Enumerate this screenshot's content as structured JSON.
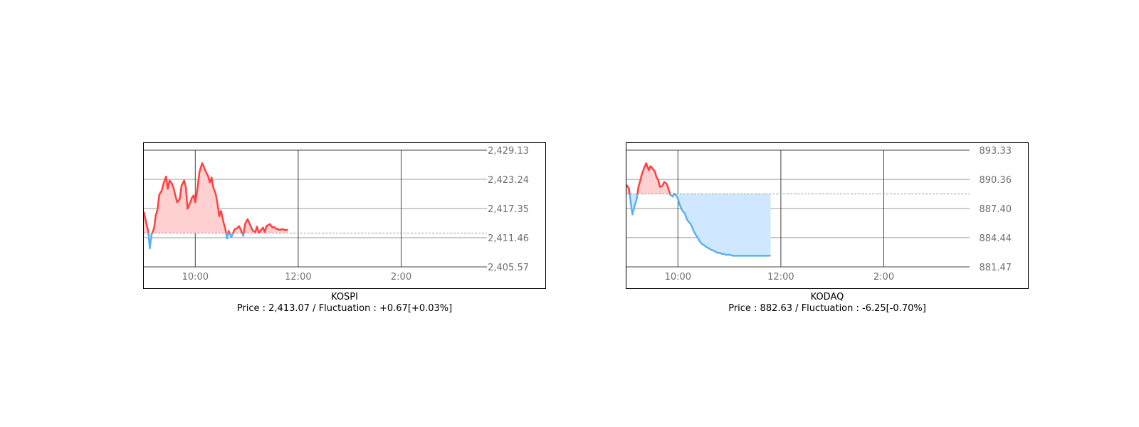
{
  "chart_data": [
    {
      "type": "area",
      "title": "KOSPI",
      "price_line": "Price : 2,413.07 / Fluctuation : +0.67[+0.03%]",
      "baseline": 2412.4,
      "ylim": [
        2405.57,
        2429.13
      ],
      "y_ticks": [
        "2,429.13",
        "2,423.24",
        "2,417.35",
        "2,411.46",
        "2,405.57"
      ],
      "y_tick_values": [
        2429.13,
        2423.24,
        2417.35,
        2411.46,
        2405.57
      ],
      "x_ticks": [
        "10:00",
        "12:00",
        "2:00"
      ],
      "x_tick_values": [
        600,
        720,
        840
      ],
      "xlim": [
        540,
        940
      ],
      "colors": {
        "up": "#ff4040",
        "down": "#5ab0f5",
        "up_fill": "#ffd0d0",
        "down_fill": "#d0e8ff",
        "baseline": "#999999",
        "grid": "#999999",
        "axis": "#444444"
      },
      "series": [
        {
          "name": "KOSPI",
          "x": [
            540,
            543,
            545,
            547,
            549,
            552,
            554,
            556,
            558,
            561,
            563,
            566,
            568,
            570,
            573,
            575,
            577,
            579,
            582,
            584,
            587,
            589,
            591,
            594,
            596,
            598,
            600,
            602,
            605,
            608,
            610,
            612,
            615,
            617,
            619,
            621,
            624,
            626,
            628,
            630,
            633,
            635,
            637,
            639,
            642,
            644,
            646,
            649,
            651,
            653,
            656,
            658,
            661,
            664,
            667,
            670,
            672,
            674,
            677,
            679,
            681,
            683,
            685,
            687,
            690,
            692,
            694,
            697,
            699,
            701,
            703,
            705,
            708
          ],
          "values": [
            2416.7,
            2414.3,
            2412.9,
            2409.3,
            2412.0,
            2413.4,
            2416.0,
            2417.1,
            2420.1,
            2421.0,
            2422.4,
            2423.8,
            2421.3,
            2423.0,
            2422.3,
            2421.3,
            2419.8,
            2418.6,
            2419.3,
            2422.0,
            2423.0,
            2421.7,
            2417.3,
            2418.5,
            2419.5,
            2420.0,
            2418.6,
            2420.7,
            2424.8,
            2426.5,
            2425.8,
            2424.9,
            2423.9,
            2422.6,
            2423.6,
            2421.6,
            2420.2,
            2418.2,
            2415.8,
            2416.9,
            2414.5,
            2413.3,
            2411.3,
            2412.8,
            2411.5,
            2412.4,
            2413.2,
            2413.4,
            2413.8,
            2413.1,
            2411.8,
            2414.2,
            2415.2,
            2414.0,
            2412.9,
            2412.6,
            2413.7,
            2412.4,
            2413.1,
            2413.5,
            2412.6,
            2413.8,
            2414.0,
            2414.2,
            2413.5,
            2413.6,
            2413.3,
            2413.1,
            2413.0,
            2413.2,
            2413.1,
            2413.0,
            2413.07
          ]
        }
      ]
    },
    {
      "type": "area",
      "title": "KODAQ",
      "price_line": "Price : 882.63 / Fluctuation : -6.25[-0.70%]",
      "baseline": 888.88,
      "ylim": [
        881.47,
        893.33
      ],
      "y_ticks": [
        "893.33",
        "890.36",
        "887.40",
        "884.44",
        "881.47"
      ],
      "y_tick_values": [
        893.33,
        890.36,
        887.4,
        884.44,
        881.47
      ],
      "x_ticks": [
        "10:00",
        "12:00",
        "2:00"
      ],
      "x_tick_values": [
        600,
        720,
        840
      ],
      "xlim": [
        540,
        940
      ],
      "colors": {
        "up": "#ff4040",
        "down": "#5ab0f5",
        "up_fill": "#ffd0d0",
        "down_fill": "#d0e8ff",
        "baseline": "#999999",
        "grid": "#999999",
        "axis": "#444444"
      },
      "series": [
        {
          "name": "KODAQ",
          "x": [
            540,
            543,
            545,
            547,
            549,
            552,
            554,
            556,
            558,
            561,
            563,
            566,
            568,
            570,
            573,
            575,
            577,
            579,
            582,
            584,
            587,
            589,
            591,
            594,
            596,
            598,
            600,
            602,
            605,
            608,
            610,
            612,
            615,
            617,
            619,
            621,
            624,
            626,
            628,
            630,
            633,
            635,
            637,
            639,
            642,
            644,
            646,
            649,
            651,
            653,
            656,
            658,
            661,
            664,
            667,
            670,
            672,
            674,
            677,
            679,
            681,
            683,
            685,
            687,
            690,
            692,
            694,
            697,
            699,
            701,
            703,
            705,
            708
          ],
          "values": [
            889.8,
            889.4,
            888.0,
            886.8,
            887.5,
            888.4,
            889.6,
            890.2,
            890.9,
            891.6,
            892.0,
            891.3,
            891.7,
            891.5,
            891.2,
            890.6,
            890.3,
            889.6,
            889.7,
            890.1,
            889.9,
            889.4,
            888.8,
            888.6,
            888.9,
            888.7,
            888.4,
            887.8,
            887.2,
            886.9,
            886.4,
            886.1,
            885.8,
            885.4,
            885.0,
            884.7,
            884.3,
            884.0,
            883.8,
            883.7,
            883.5,
            883.4,
            883.3,
            883.2,
            883.1,
            883.0,
            882.9,
            882.9,
            882.8,
            882.8,
            882.7,
            882.7,
            882.7,
            882.6,
            882.6,
            882.6,
            882.6,
            882.6,
            882.6,
            882.6,
            882.6,
            882.6,
            882.6,
            882.6,
            882.6,
            882.6,
            882.6,
            882.6,
            882.6,
            882.6,
            882.6,
            882.6,
            882.63
          ]
        }
      ]
    }
  ]
}
